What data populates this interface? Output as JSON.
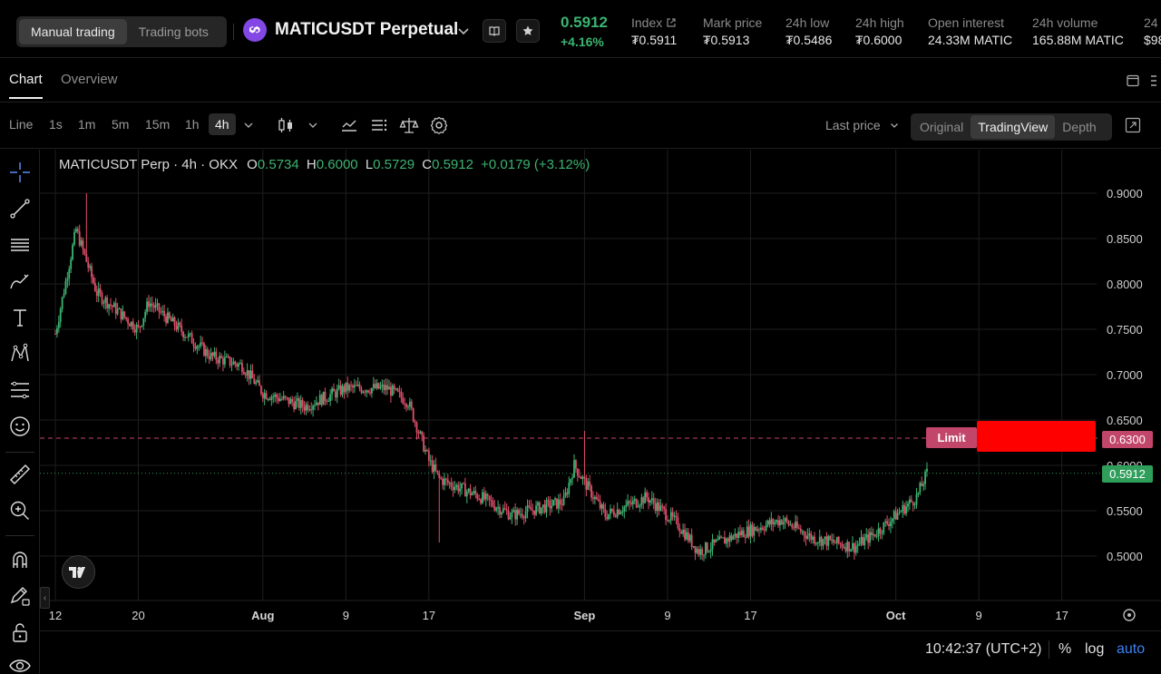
{
  "header": {
    "mode_tabs": [
      "Manual trading",
      "Trading bots"
    ],
    "pair": "MATICUSDT Perpetual",
    "last_price": "0.5912",
    "change": "+4.16%",
    "stats": [
      {
        "label": "Index",
        "value": "₮0.5911"
      },
      {
        "label": "Mark price",
        "value": "₮0.5913"
      },
      {
        "label": "24h low",
        "value": "₮0.5486"
      },
      {
        "label": "24h high",
        "value": "₮0.6000"
      },
      {
        "label": "Open interest",
        "value": "24.33M MATIC"
      },
      {
        "label": "24h volume",
        "value": "165.88M MATIC"
      },
      {
        "label": "24",
        "value": "$98"
      }
    ]
  },
  "tabs": [
    "Chart",
    "Overview"
  ],
  "toolbar": {
    "timeframes": [
      "Line",
      "1s",
      "1m",
      "5m",
      "15m",
      "1h",
      "4h"
    ],
    "active_timeframe": "4h",
    "price_source": "Last price",
    "views": [
      "Original",
      "TradingView",
      "Depth"
    ],
    "active_view": "TradingView"
  },
  "legend": {
    "symbol": "MATICUSDT Perp · 4h · OKX",
    "o_label": "O",
    "o": "0.5734",
    "h_label": "H",
    "h": "0.6000",
    "l_label": "L",
    "l": "0.5729",
    "c_label": "C",
    "c": "0.5912",
    "change": "+0.0179 (+3.12%)"
  },
  "order_line": {
    "label": "Limit",
    "price": "0.6300"
  },
  "current_price_tag": "0.5912",
  "bottom": {
    "time": "10:42:37 (UTC+2)",
    "options": [
      "%",
      "log",
      "auto"
    ]
  },
  "colors": {
    "up": "#3cb371",
    "down": "#e04e6a",
    "limit": "#c2456a",
    "accent": "#3b82f6"
  },
  "chart_data": {
    "type": "candlestick",
    "y_ticks": [
      "0.9000",
      "0.8500",
      "0.8000",
      "0.7500",
      "0.7000",
      "0.6500",
      "0.6000",
      "0.5500",
      "0.5000"
    ],
    "x_ticks": [
      "12",
      "20",
      "Aug",
      "9",
      "17",
      "Sep",
      "9",
      "17",
      "Oct",
      "9",
      "17"
    ],
    "ylim": [
      0.47,
      0.92
    ],
    "series": [
      {
        "x": "Jul 12",
        "close": 0.745
      },
      {
        "x": "Jul 14",
        "close": 0.86
      },
      {
        "x": "Jul 16",
        "close": 0.79
      },
      {
        "x": "Jul 20",
        "close": 0.75
      },
      {
        "x": "Jul 21",
        "close": 0.78
      },
      {
        "x": "Jul 24",
        "close": 0.75
      },
      {
        "x": "Jul 27",
        "close": 0.72
      },
      {
        "x": "Jul 30",
        "close": 0.71
      },
      {
        "x": "Aug 1",
        "close": 0.68
      },
      {
        "x": "Aug 5",
        "close": 0.665
      },
      {
        "x": "Aug 9",
        "close": 0.685
      },
      {
        "x": "Aug 13",
        "close": 0.685
      },
      {
        "x": "Aug 15",
        "close": 0.67
      },
      {
        "x": "Aug 17",
        "close": 0.605
      },
      {
        "x": "Aug 18",
        "close": 0.585
      },
      {
        "x": "Aug 22",
        "close": 0.565
      },
      {
        "x": "Aug 25",
        "close": 0.545
      },
      {
        "x": "Aug 30",
        "close": 0.56
      },
      {
        "x": "Aug 31",
        "close": 0.6
      },
      {
        "x": "Sep 3",
        "close": 0.545
      },
      {
        "x": "Sep 7",
        "close": 0.565
      },
      {
        "x": "Sep 10",
        "close": 0.535
      },
      {
        "x": "Sep 12",
        "close": 0.505
      },
      {
        "x": "Sep 16",
        "close": 0.525
      },
      {
        "x": "Sep 20",
        "close": 0.54
      },
      {
        "x": "Sep 23",
        "close": 0.52
      },
      {
        "x": "Sep 27",
        "close": 0.51
      },
      {
        "x": "Sep 29",
        "close": 0.525
      },
      {
        "x": "Oct 1",
        "close": 0.545
      },
      {
        "x": "Oct 3",
        "close": 0.565
      },
      {
        "x": "Oct 4",
        "close": 0.5912
      }
    ]
  }
}
